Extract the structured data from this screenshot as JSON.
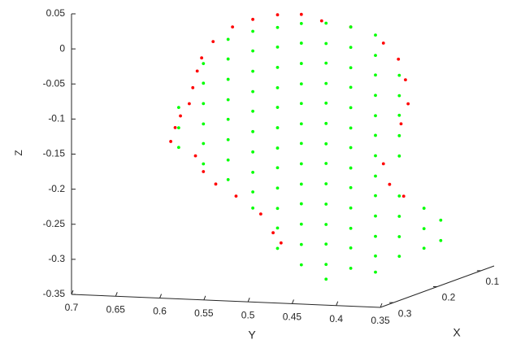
{
  "chart_data": {
    "type": "scatter3d",
    "xlabel": "X",
    "ylabel": "Y",
    "zlabel": "Z",
    "xlim": [
      0.07,
      0.33
    ],
    "ylim": [
      0.35,
      0.7
    ],
    "zlim": [
      -0.35,
      0.05
    ],
    "xticks": [
      0.1,
      0.2,
      0.3
    ],
    "yticks": [
      0.35,
      0.4,
      0.45,
      0.5,
      0.55,
      0.6,
      0.65,
      0.7
    ],
    "zticks": [
      -0.35,
      -0.3,
      -0.25,
      -0.2,
      -0.15,
      -0.1,
      -0.05,
      0,
      0.05
    ],
    "series": [
      {
        "color": "#ff0000",
        "x": [
          0.2,
          0.2,
          0.2,
          0.2,
          0.2,
          0.2,
          0.2,
          0.2,
          0.2,
          0.2,
          0.2,
          0.2,
          0.2,
          0.2,
          0.2,
          0.2,
          0.2,
          0.2,
          0.2,
          0.2,
          0.2,
          0.2,
          0.2,
          0.2,
          0.2,
          0.2,
          0.2,
          0.2,
          0.2
        ],
        "y": [
          0.652,
          0.647,
          0.641,
          0.631,
          0.627,
          0.622,
          0.617,
          0.604,
          0.582,
          0.559,
          0.531,
          0.504,
          0.481,
          0.448,
          0.411,
          0.394,
          0.386,
          0.383,
          0.391,
          0.411,
          0.404,
          0.388,
          0.624,
          0.615,
          0.601,
          0.578,
          0.55,
          0.536,
          0.527
        ],
        "z": [
          -0.159,
          -0.139,
          -0.122,
          -0.104,
          -0.081,
          -0.057,
          -0.038,
          -0.014,
          0.008,
          0.02,
          0.028,
          0.03,
          0.022,
          0.015,
          -0.006,
          -0.028,
          -0.057,
          -0.091,
          -0.12,
          -0.178,
          -0.207,
          -0.223,
          -0.178,
          -0.2,
          -0.217,
          -0.233,
          -0.257,
          -0.283,
          -0.297
        ]
      },
      {
        "color": "#00ff00",
        "x": [
          0.2,
          0.2,
          0.2,
          0.2,
          0.2,
          0.2,
          0.2,
          0.2,
          0.2,
          0.2,
          0.2,
          0.2,
          0.2,
          0.2,
          0.2,
          0.2,
          0.2,
          0.2,
          0.2,
          0.2,
          0.2,
          0.2,
          0.2,
          0.2,
          0.2,
          0.2,
          0.2,
          0.2,
          0.2,
          0.2,
          0.2,
          0.2,
          0.2,
          0.2,
          0.2,
          0.2,
          0.2,
          0.2,
          0.2,
          0.2,
          0.2,
          0.2,
          0.2,
          0.2,
          0.2,
          0.2,
          0.2,
          0.2,
          0.2,
          0.2,
          0.2,
          0.2,
          0.2,
          0.2,
          0.2,
          0.2,
          0.2,
          0.2,
          0.2,
          0.2,
          0.2,
          0.2,
          0.2,
          0.2,
          0.2,
          0.2,
          0.2,
          0.2,
          0.2,
          0.2,
          0.2,
          0.2,
          0.2,
          0.2,
          0.2,
          0.2,
          0.2,
          0.2,
          0.2,
          0.2,
          0.2,
          0.2,
          0.2,
          0.2,
          0.2,
          0.2,
          0.2,
          0.2,
          0.2,
          0.2,
          0.2,
          0.2,
          0.2,
          0.2,
          0.2,
          0.2,
          0.2,
          0.2,
          0.2,
          0.2,
          0.2,
          0.2,
          0.2,
          0.2,
          0.2,
          0.2
        ],
        "y": [
          0.643,
          0.643,
          0.643,
          0.615,
          0.615,
          0.615,
          0.615,
          0.615,
          0.615,
          0.587,
          0.587,
          0.587,
          0.587,
          0.587,
          0.587,
          0.587,
          0.587,
          0.559,
          0.559,
          0.559,
          0.559,
          0.559,
          0.559,
          0.559,
          0.559,
          0.559,
          0.559,
          0.531,
          0.531,
          0.531,
          0.531,
          0.531,
          0.531,
          0.531,
          0.531,
          0.531,
          0.531,
          0.531,
          0.531,
          0.504,
          0.504,
          0.504,
          0.504,
          0.504,
          0.504,
          0.504,
          0.504,
          0.504,
          0.504,
          0.504,
          0.504,
          0.504,
          0.476,
          0.476,
          0.476,
          0.476,
          0.476,
          0.476,
          0.476,
          0.476,
          0.476,
          0.476,
          0.476,
          0.476,
          0.476,
          0.476,
          0.448,
          0.448,
          0.448,
          0.448,
          0.448,
          0.448,
          0.448,
          0.448,
          0.448,
          0.448,
          0.448,
          0.448,
          0.448,
          0.42,
          0.42,
          0.42,
          0.42,
          0.42,
          0.42,
          0.42,
          0.42,
          0.42,
          0.42,
          0.42,
          0.42,
          0.42,
          0.393,
          0.393,
          0.393,
          0.393,
          0.393,
          0.393,
          0.393,
          0.393,
          0.393,
          0.365,
          0.365,
          0.365,
          0.346,
          0.346
        ],
        "z": [
          -0.11,
          -0.139,
          -0.167,
          -0.046,
          -0.074,
          -0.103,
          -0.132,
          -0.16,
          -0.189,
          -0.01,
          -0.038,
          -0.067,
          -0.096,
          -0.124,
          -0.153,
          -0.182,
          -0.21,
          0.003,
          -0.025,
          -0.054,
          -0.083,
          -0.111,
          -0.14,
          -0.169,
          -0.198,
          -0.226,
          -0.249,
          0.01,
          -0.018,
          -0.047,
          -0.076,
          -0.104,
          -0.133,
          -0.162,
          -0.19,
          -0.219,
          -0.248,
          -0.276,
          -0.305,
          0.017,
          -0.011,
          -0.04,
          -0.069,
          -0.097,
          -0.126,
          -0.154,
          -0.183,
          -0.212,
          -0.24,
          -0.269,
          -0.298,
          -0.327,
          0.019,
          -0.01,
          -0.038,
          -0.067,
          -0.095,
          -0.124,
          -0.153,
          -0.181,
          -0.21,
          -0.239,
          -0.268,
          -0.296,
          -0.325,
          -0.346,
          0.015,
          -0.014,
          -0.043,
          -0.071,
          -0.1,
          -0.129,
          -0.157,
          -0.186,
          -0.214,
          -0.243,
          -0.272,
          -0.3,
          -0.329,
          0.005,
          -0.024,
          -0.052,
          -0.081,
          -0.11,
          -0.138,
          -0.167,
          -0.196,
          -0.224,
          -0.253,
          -0.282,
          -0.31,
          -0.333,
          -0.051,
          -0.08,
          -0.108,
          -0.137,
          -0.166,
          -0.223,
          -0.252,
          -0.281,
          -0.309,
          -0.239,
          -0.268,
          -0.296,
          -0.255,
          -0.284
        ]
      }
    ]
  }
}
